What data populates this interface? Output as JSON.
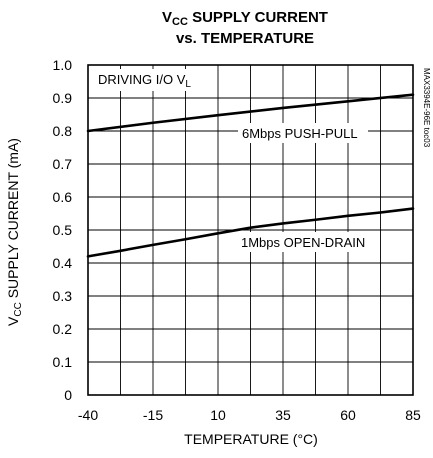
{
  "chart_data": {
    "type": "line",
    "title": {
      "line1_main": "V",
      "line1_sub": "CC",
      "line1_rest": " SUPPLY CURRENT",
      "line2": "vs. TEMPERATURE"
    },
    "xlabel": "TEMPERATURE (°C)",
    "ylabel": {
      "main": "V",
      "sub": "CC",
      "rest": " SUPPLY CURRENT (mA)"
    },
    "xlim": [
      -40,
      85
    ],
    "ylim": [
      0,
      1.0
    ],
    "x_ticks": [
      -40,
      -15,
      10,
      35,
      60,
      85
    ],
    "x_tick_labels": [
      "-40",
      "-15",
      "10",
      "35",
      "60",
      "85"
    ],
    "y_ticks": [
      0,
      0.1,
      0.2,
      0.3,
      0.4,
      0.5,
      0.6,
      0.7,
      0.8,
      0.9,
      1.0
    ],
    "y_tick_labels": [
      "0",
      "0.1",
      "0.2",
      "0.3",
      "0.4",
      "0.5",
      "0.6",
      "0.7",
      "0.8",
      "0.9",
      "1.0"
    ],
    "x_minor_gridlines": [
      -27.5,
      -2.5,
      22.5,
      47.5,
      72.5
    ],
    "grid": true,
    "annotations": {
      "condition_main": "DRIVING I/O V",
      "condition_sub": "L",
      "side_note": "MAX3394E-96E toc03"
    },
    "series": [
      {
        "name": "6Mbps PUSH-PULL",
        "x": [
          -40,
          -15,
          10,
          35,
          60,
          85
        ],
        "y": [
          0.8,
          0.825,
          0.848,
          0.87,
          0.89,
          0.91
        ]
      },
      {
        "name": "1Mbps OPEN-DRAIN",
        "x": [
          -40,
          -27.5,
          -15,
          -2.5,
          10,
          22.5,
          35,
          47.5,
          60,
          72.5,
          85
        ],
        "y": [
          0.42,
          0.437,
          0.455,
          0.472,
          0.49,
          0.507,
          0.52,
          0.531,
          0.543,
          0.553,
          0.565
        ]
      }
    ]
  }
}
